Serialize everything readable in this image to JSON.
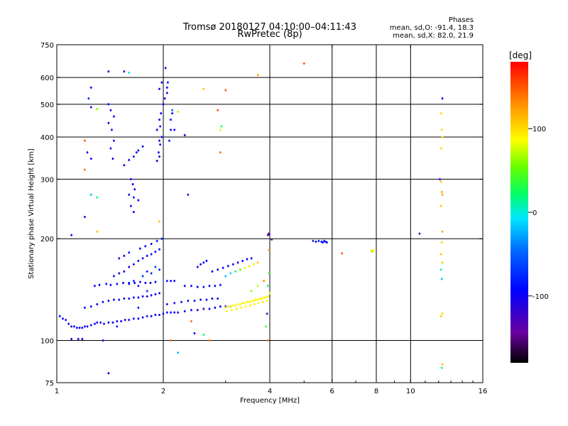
{
  "header": {
    "title_line1": "Tromsø 20180127 04:10:00–04:11:43",
    "title_line2": "RwPretec (8p)"
  },
  "stats": {
    "heading": "Phases",
    "line_o": "mean, sd,O: -91.4, 18.3",
    "line_x": "mean, sd,X: 82.0, 21.9"
  },
  "colorbar": {
    "label": "[deg]",
    "range": [
      -180,
      180
    ],
    "ticks": [
      {
        "value": 100,
        "label": "100"
      },
      {
        "value": 0,
        "label": "0"
      },
      {
        "value": -100,
        "label": "-100"
      }
    ]
  },
  "chart_data": {
    "type": "scatter",
    "title": "Tromsø 20180127 04:10:00–04:11:43",
    "subtitle": "RwPretec (8p)",
    "xlabel": "Frequency [MHz]",
    "ylabel": "Stationary phase Virtual Height [km]",
    "xscale": "log",
    "yscale": "log",
    "xlim": [
      1,
      16
    ],
    "ylim": [
      75,
      750
    ],
    "x_ticks": [
      {
        "value": 1,
        "label": "1"
      },
      {
        "value": 2,
        "label": "2"
      },
      {
        "value": 4,
        "label": "4"
      },
      {
        "value": 6,
        "label": "6"
      },
      {
        "value": 8,
        "label": "8"
      },
      {
        "value": 10,
        "label": "10"
      },
      {
        "value": 16,
        "label": "16"
      }
    ],
    "y_ticks": [
      {
        "value": 75,
        "label": "75"
      },
      {
        "value": 100,
        "label": "100"
      },
      {
        "value": 200,
        "label": "200"
      },
      {
        "value": 300,
        "label": "300"
      },
      {
        "value": 400,
        "label": "400"
      },
      {
        "value": 500,
        "label": "500"
      },
      {
        "value": 600,
        "label": "600"
      },
      {
        "value": 750,
        "label": "750"
      }
    ],
    "grid_x": [
      2,
      4,
      6,
      8,
      10
    ],
    "grid_y": [
      100,
      200,
      300,
      400,
      500,
      600
    ],
    "grid": true,
    "color_variable": "phase [deg]",
    "points": [
      [
        1.02,
        118,
        -100
      ],
      [
        1.04,
        116,
        -95
      ],
      [
        1.06,
        115,
        -110
      ],
      [
        1.08,
        112,
        -100
      ],
      [
        1.1,
        110,
        -105
      ],
      [
        1.12,
        110,
        -100
      ],
      [
        1.14,
        109,
        -95
      ],
      [
        1.16,
        109,
        -100
      ],
      [
        1.18,
        109,
        -105
      ],
      [
        1.2,
        110,
        -100
      ],
      [
        1.22,
        110,
        -90
      ],
      [
        1.25,
        111,
        -100
      ],
      [
        1.28,
        112,
        -95
      ],
      [
        1.3,
        113,
        -100
      ],
      [
        1.33,
        113,
        -105
      ],
      [
        1.36,
        112,
        -100
      ],
      [
        1.4,
        113,
        -95
      ],
      [
        1.44,
        113,
        -100
      ],
      [
        1.48,
        114,
        -100
      ],
      [
        1.52,
        114,
        -95
      ],
      [
        1.56,
        115,
        -100
      ],
      [
        1.6,
        115,
        -105
      ],
      [
        1.65,
        116,
        -100
      ],
      [
        1.7,
        116,
        -95
      ],
      [
        1.75,
        117,
        -100
      ],
      [
        1.8,
        118,
        -100
      ],
      [
        1.85,
        118,
        -95
      ],
      [
        1.9,
        119,
        -100
      ],
      [
        1.95,
        119,
        -105
      ],
      [
        2.0,
        120,
        -100
      ],
      [
        2.05,
        121,
        -95
      ],
      [
        2.1,
        121,
        -100
      ],
      [
        2.15,
        121,
        -100
      ],
      [
        2.2,
        121,
        -95
      ],
      [
        2.3,
        122,
        -100
      ],
      [
        2.4,
        123,
        -95
      ],
      [
        2.5,
        123,
        -100
      ],
      [
        2.6,
        124,
        -100
      ],
      [
        2.7,
        124,
        -95
      ],
      [
        2.8,
        125,
        -100
      ],
      [
        2.9,
        126,
        -95
      ],
      [
        3.0,
        126,
        -90
      ],
      [
        3.1,
        126,
        -90
      ],
      [
        1.2,
        125,
        -100
      ],
      [
        1.25,
        126,
        -95
      ],
      [
        1.3,
        128,
        -100
      ],
      [
        1.35,
        130,
        -90
      ],
      [
        1.4,
        131,
        -100
      ],
      [
        1.45,
        132,
        -95
      ],
      [
        1.5,
        132,
        -100
      ],
      [
        1.55,
        133,
        -90
      ],
      [
        1.6,
        133,
        -100
      ],
      [
        1.65,
        134,
        -95
      ],
      [
        1.7,
        134,
        -100
      ],
      [
        1.75,
        135,
        -90
      ],
      [
        1.8,
        135,
        -100
      ],
      [
        1.85,
        136,
        -95
      ],
      [
        1.9,
        137,
        -100
      ],
      [
        1.95,
        138,
        -100
      ],
      [
        2.05,
        128,
        -95
      ],
      [
        2.15,
        129,
        -100
      ],
      [
        2.25,
        130,
        -90
      ],
      [
        2.35,
        131,
        -100
      ],
      [
        2.45,
        131,
        -95
      ],
      [
        2.55,
        132,
        -100
      ],
      [
        2.65,
        132,
        -95
      ],
      [
        2.75,
        133,
        -100
      ],
      [
        2.85,
        133,
        -90
      ],
      [
        1.28,
        145,
        -100
      ],
      [
        1.32,
        146,
        -95
      ],
      [
        1.38,
        147,
        -100
      ],
      [
        1.42,
        146,
        -90
      ],
      [
        1.48,
        147,
        -100
      ],
      [
        1.54,
        148,
        -95
      ],
      [
        1.6,
        147,
        -100
      ],
      [
        1.66,
        148,
        -95
      ],
      [
        1.72,
        149,
        -100
      ],
      [
        1.78,
        148,
        -90
      ],
      [
        1.84,
        148,
        -100
      ],
      [
        1.9,
        149,
        -95
      ],
      [
        2.05,
        150,
        -90
      ],
      [
        2.1,
        150,
        -100
      ],
      [
        2.15,
        150,
        -95
      ],
      [
        2.3,
        145,
        -95
      ],
      [
        2.4,
        145,
        -100
      ],
      [
        2.5,
        144,
        -95
      ],
      [
        2.6,
        144,
        -90
      ],
      [
        2.7,
        145,
        -100
      ],
      [
        2.8,
        145,
        -95
      ],
      [
        2.9,
        146,
        -90
      ],
      [
        1.45,
        155,
        -100
      ],
      [
        1.5,
        158,
        -95
      ],
      [
        1.55,
        160,
        -100
      ],
      [
        1.6,
        165,
        -95
      ],
      [
        1.65,
        168,
        -100
      ],
      [
        1.7,
        172,
        -95
      ],
      [
        1.75,
        175,
        -100
      ],
      [
        1.8,
        178,
        -95
      ],
      [
        1.85,
        180,
        -90
      ],
      [
        1.9,
        183,
        -100
      ],
      [
        1.95,
        186,
        -95
      ],
      [
        1.5,
        175,
        -100
      ],
      [
        1.55,
        178,
        -95
      ],
      [
        1.6,
        182,
        -90
      ],
      [
        1.72,
        187,
        -90
      ],
      [
        1.78,
        190,
        -95
      ],
      [
        1.85,
        193,
        -100
      ],
      [
        1.92,
        197,
        -90
      ],
      [
        1.98,
        200,
        -85
      ],
      [
        1.6,
        148,
        -90
      ],
      [
        1.65,
        150,
        -75
      ],
      [
        1.7,
        145,
        -85
      ],
      [
        1.75,
        155,
        -70
      ],
      [
        1.8,
        160,
        -80
      ],
      [
        1.85,
        158,
        -75
      ],
      [
        1.9,
        165,
        -70
      ],
      [
        1.95,
        162,
        -80
      ],
      [
        1.7,
        125,
        -80
      ],
      [
        1.8,
        140,
        -70
      ],
      [
        2.5,
        165,
        -100
      ],
      [
        2.55,
        168,
        -95
      ],
      [
        2.6,
        170,
        -90
      ],
      [
        2.65,
        172,
        -100
      ],
      [
        2.75,
        160,
        -95
      ],
      [
        2.85,
        162,
        -90
      ],
      [
        2.95,
        164,
        -100
      ],
      [
        3.05,
        166,
        -95
      ],
      [
        3.15,
        168,
        -90
      ],
      [
        3.25,
        170,
        -100
      ],
      [
        3.35,
        172,
        -95
      ],
      [
        3.45,
        174,
        -90
      ],
      [
        3.55,
        175,
        -100
      ],
      [
        3.0,
        155,
        -20
      ],
      [
        3.1,
        158,
        -10
      ],
      [
        3.2,
        160,
        20
      ],
      [
        3.3,
        162,
        50
      ],
      [
        3.4,
        164,
        80
      ],
      [
        3.5,
        166,
        100
      ],
      [
        3.6,
        168,
        90
      ],
      [
        3.7,
        170,
        110
      ],
      [
        3.0,
        125,
        90
      ],
      [
        3.05,
        126,
        95
      ],
      [
        3.1,
        126,
        85
      ],
      [
        3.15,
        127,
        90
      ],
      [
        3.2,
        127,
        95
      ],
      [
        3.25,
        128,
        85
      ],
      [
        3.3,
        128,
        90
      ],
      [
        3.35,
        129,
        95
      ],
      [
        3.4,
        129,
        85
      ],
      [
        3.45,
        130,
        90
      ],
      [
        3.5,
        130,
        95
      ],
      [
        3.55,
        131,
        85
      ],
      [
        3.6,
        131,
        90
      ],
      [
        3.65,
        132,
        95
      ],
      [
        3.7,
        132,
        85
      ],
      [
        3.75,
        133,
        90
      ],
      [
        3.8,
        133,
        95
      ],
      [
        3.85,
        134,
        85
      ],
      [
        3.9,
        134,
        90
      ],
      [
        3.95,
        135,
        95
      ],
      [
        3.02,
        122,
        90
      ],
      [
        3.12,
        123,
        85
      ],
      [
        3.22,
        124,
        95
      ],
      [
        3.32,
        125,
        90
      ],
      [
        3.42,
        126,
        85
      ],
      [
        3.52,
        127,
        95
      ],
      [
        3.62,
        128,
        90
      ],
      [
        3.72,
        129,
        85
      ],
      [
        3.82,
        130,
        95
      ],
      [
        3.92,
        131,
        90
      ],
      [
        3.55,
        140,
        60
      ],
      [
        3.7,
        145,
        70
      ],
      [
        3.85,
        150,
        130
      ],
      [
        3.95,
        145,
        20
      ],
      [
        4.0,
        138,
        80
      ],
      [
        3.98,
        158,
        40
      ],
      [
        3.98,
        185,
        130
      ],
      [
        3.95,
        205,
        -140
      ],
      [
        3.97,
        207,
        -130
      ],
      [
        3.99,
        206,
        -150
      ],
      [
        4.05,
        199,
        -130
      ],
      [
        5.3,
        197,
        -85
      ],
      [
        5.4,
        196,
        -90
      ],
      [
        5.5,
        197,
        -80
      ],
      [
        5.6,
        196,
        -90
      ],
      [
        5.65,
        195,
        -85
      ],
      [
        5.7,
        197,
        -90
      ],
      [
        5.75,
        196,
        -80
      ],
      [
        5.8,
        195,
        -90
      ],
      [
        5.0,
        660,
        150
      ],
      [
        6.4,
        181,
        150
      ],
      [
        7.75,
        184,
        100
      ],
      [
        7.8,
        183,
        70
      ],
      [
        7.85,
        185,
        90
      ],
      [
        10.6,
        207,
        -130
      ],
      [
        12.3,
        520,
        -110
      ],
      [
        12.2,
        470,
        100
      ],
      [
        12.25,
        420,
        100
      ],
      [
        12.3,
        400,
        100
      ],
      [
        12.2,
        370,
        100
      ],
      [
        12.1,
        300,
        -110
      ],
      [
        12.2,
        295,
        110
      ],
      [
        12.25,
        275,
        120
      ],
      [
        12.3,
        270,
        120
      ],
      [
        12.2,
        250,
        110
      ],
      [
        12.3,
        210,
        120
      ],
      [
        12.25,
        195,
        100
      ],
      [
        12.2,
        180,
        110
      ],
      [
        12.3,
        170,
        110
      ],
      [
        12.2,
        162,
        20
      ],
      [
        12.25,
        152,
        -20
      ],
      [
        12.3,
        120,
        100
      ],
      [
        12.2,
        118,
        110
      ],
      [
        12.3,
        85,
        110
      ],
      [
        12.25,
        83,
        20
      ],
      [
        1.4,
        625,
        -110
      ],
      [
        1.55,
        625,
        -80
      ],
      [
        1.4,
        500,
        -100
      ],
      [
        1.42,
        480,
        -110
      ],
      [
        1.45,
        460,
        -95
      ],
      [
        1.4,
        440,
        -100
      ],
      [
        1.43,
        420,
        -110
      ],
      [
        1.45,
        390,
        -100
      ],
      [
        1.42,
        370,
        -105
      ],
      [
        1.44,
        345,
        -100
      ],
      [
        1.25,
        560,
        -90
      ],
      [
        1.23,
        520,
        -80
      ],
      [
        1.25,
        490,
        -100
      ],
      [
        1.3,
        484,
        60
      ],
      [
        1.2,
        390,
        150
      ],
      [
        1.22,
        360,
        -110
      ],
      [
        1.2,
        320,
        140
      ],
      [
        1.25,
        345,
        -100
      ],
      [
        1.55,
        330,
        -100
      ],
      [
        1.6,
        342,
        -95
      ],
      [
        1.65,
        350,
        -100
      ],
      [
        1.68,
        360,
        -105
      ],
      [
        1.7,
        365,
        -100
      ],
      [
        1.75,
        375,
        -95
      ],
      [
        1.62,
        300,
        -100
      ],
      [
        1.64,
        290,
        -95
      ],
      [
        1.66,
        280,
        -100
      ],
      [
        1.6,
        270,
        -90
      ],
      [
        1.65,
        265,
        -100
      ],
      [
        1.7,
        260,
        -95
      ],
      [
        1.62,
        250,
        -100
      ],
      [
        1.65,
        240,
        -105
      ],
      [
        1.92,
        340,
        -95
      ],
      [
        1.95,
        350,
        -100
      ],
      [
        1.94,
        360,
        -95
      ],
      [
        1.96,
        380,
        -100
      ],
      [
        1.95,
        390,
        -95
      ],
      [
        1.98,
        400,
        -90
      ],
      [
        1.92,
        420,
        -100
      ],
      [
        1.96,
        430,
        -95
      ],
      [
        1.95,
        450,
        -100
      ],
      [
        1.97,
        470,
        -95
      ],
      [
        2.0,
        500,
        -100
      ],
      [
        2.02,
        520,
        -95
      ],
      [
        2.05,
        540,
        -100
      ],
      [
        2.05,
        560,
        -95
      ],
      [
        2.06,
        580,
        -100
      ],
      [
        2.03,
        640,
        -110
      ],
      [
        1.95,
        555,
        -95
      ],
      [
        1.98,
        580,
        -100
      ],
      [
        2.08,
        390,
        -90
      ],
      [
        2.1,
        420,
        -95
      ],
      [
        2.1,
        450,
        -100
      ],
      [
        2.12,
        470,
        -90
      ],
      [
        2.12,
        480,
        -50
      ],
      [
        2.2,
        475,
        100
      ],
      [
        2.15,
        420,
        -100
      ],
      [
        2.3,
        405,
        -100
      ],
      [
        2.35,
        270,
        -120
      ],
      [
        2.85,
        480,
        150
      ],
      [
        2.9,
        420,
        80
      ],
      [
        2.92,
        430,
        30
      ],
      [
        2.9,
        360,
        140
      ],
      [
        3.0,
        550,
        150
      ],
      [
        3.7,
        610,
        120
      ],
      [
        2.6,
        555,
        110
      ],
      [
        1.6,
        620,
        0
      ],
      [
        2.1,
        100,
        150
      ],
      [
        2.2,
        92,
        -20
      ],
      [
        2.4,
        114,
        140
      ],
      [
        2.45,
        105,
        -110
      ],
      [
        2.6,
        104,
        20
      ],
      [
        2.7,
        100,
        140
      ],
      [
        1.35,
        100,
        -110
      ],
      [
        1.4,
        80,
        -100
      ],
      [
        1.48,
        110,
        -80
      ],
      [
        1.15,
        101,
        -110
      ],
      [
        1.18,
        101,
        -100
      ],
      [
        1.1,
        101,
        -90
      ],
      [
        1.25,
        270,
        -20
      ],
      [
        1.3,
        265,
        20
      ],
      [
        1.2,
        232,
        -120
      ],
      [
        1.3,
        210,
        110
      ],
      [
        1.1,
        205,
        -110
      ],
      [
        1.95,
        225,
        110
      ],
      [
        3.9,
        110,
        40
      ],
      [
        3.95,
        100,
        140
      ],
      [
        3.93,
        120,
        -130
      ]
    ]
  }
}
